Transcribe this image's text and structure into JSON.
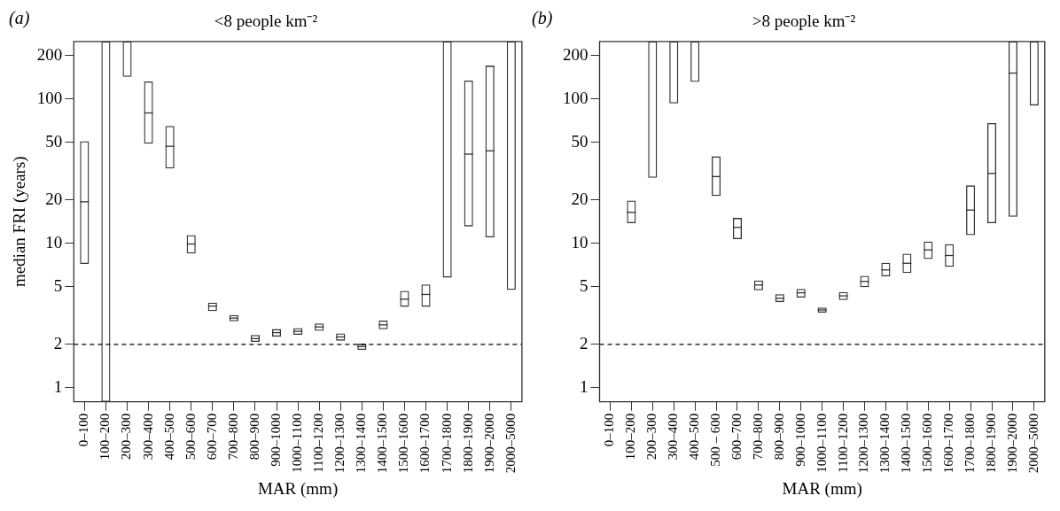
{
  "chart_data": [
    {
      "type": "box",
      "title": "<8 people km⁻²",
      "xlabel": "MAR (mm)",
      "ylabel": "median FRI (years)",
      "annotations": [
        "(a)"
      ],
      "categories": [
        "0–100",
        "100–200",
        "200–300",
        "300–400",
        "400–500",
        "500–600",
        "600–700",
        "700–800",
        "800–900",
        "900–1000",
        "1000–1100",
        "1100–1200",
        "1200–1300",
        "1300–1400",
        "1400–1500",
        "1500–1600",
        "1600–1700",
        "1700–1800",
        "1800–1900",
        "1900–2000",
        "2000–5000"
      ],
      "boxes": [
        {
          "low": 7.2,
          "q1": 7.2,
          "median": 19.4,
          "q3": 51,
          "high": 51
        },
        {
          "low": 0.8,
          "q1": 0.8,
          "median": null,
          "q3": 250,
          "high": 250
        },
        {
          "low": 142,
          "q1": 142,
          "median": null,
          "q3": 250,
          "high": 250
        },
        {
          "low": 49,
          "q1": 49,
          "median": 80,
          "q3": 132,
          "high": 132
        },
        {
          "low": 33,
          "q1": 33,
          "median": 47,
          "q3": 65,
          "high": 65
        },
        {
          "low": 8.5,
          "q1": 8.5,
          "median": 9.9,
          "q3": 11.4,
          "high": 11.4
        },
        {
          "low": 3.4,
          "q1": 3.4,
          "median": 3.68,
          "q3": 3.89,
          "high": 3.89
        },
        {
          "low": 2.89,
          "q1": 2.89,
          "median": 3.04,
          "q3": 3.19,
          "high": 3.19
        },
        {
          "low": 2.08,
          "q1": 2.08,
          "median": 2.19,
          "q3": 2.32,
          "high": 2.32
        },
        {
          "low": 2.26,
          "q1": 2.26,
          "median": 2.41,
          "q3": 2.55,
          "high": 2.55
        },
        {
          "low": 2.33,
          "q1": 2.33,
          "median": 2.46,
          "q3": 2.59,
          "high": 2.59
        },
        {
          "low": 2.48,
          "q1": 2.48,
          "median": 2.64,
          "q3": 2.79,
          "high": 2.79
        },
        {
          "low": 2.12,
          "q1": 2.12,
          "median": 2.25,
          "q3": 2.38,
          "high": 2.38
        },
        {
          "low": 1.83,
          "q1": 1.83,
          "median": 1.93,
          "q3": 2.02,
          "high": 2.02
        },
        {
          "low": 2.54,
          "q1": 2.54,
          "median": 2.73,
          "q3": 2.92,
          "high": 2.92
        },
        {
          "low": 3.64,
          "q1": 3.64,
          "median": 4.11,
          "q3": 4.69,
          "high": 4.69
        },
        {
          "low": 3.64,
          "q1": 3.64,
          "median": 4.43,
          "q3": 5.19,
          "high": 5.19
        },
        {
          "low": 5.8,
          "q1": 5.8,
          "median": null,
          "q3": 250,
          "high": 250
        },
        {
          "low": 13.1,
          "q1": 13.1,
          "median": 41.5,
          "q3": 134,
          "high": 134
        },
        {
          "low": 11,
          "q1": 11,
          "median": 43.7,
          "q3": 170,
          "high": 170
        },
        {
          "low": 4.77,
          "q1": 4.77,
          "median": null,
          "q3": 250,
          "high": 250
        }
      ],
      "log": true,
      "ylim": [
        0.8,
        250
      ],
      "yticks": [
        1,
        2,
        5,
        10,
        20,
        50,
        100,
        200
      ],
      "grid": false,
      "legend": false,
      "ref_lines": [
        {
          "axis": "y",
          "value": 2,
          "label": null,
          "color": "#000000",
          "line_style": "dashed"
        }
      ]
    },
    {
      "type": "box",
      "title": ">8 people km⁻²",
      "xlabel": "MAR (mm)",
      "annotations": [
        "(b)"
      ],
      "categories": [
        "0–100",
        "100–200",
        "200–300",
        "300–400",
        "400–500",
        "500 – 600",
        "600–700",
        "700–800",
        "800–900",
        "900–1000",
        "1000–1100",
        "1100–1200",
        "1200–1300",
        "1300–1400",
        "1400–1500",
        "1500–1600",
        "1600–1700",
        "1700–1800",
        "1800–1900",
        "1900–2000",
        "2000–5000"
      ],
      "boxes": [
        null,
        {
          "low": 13.8,
          "q1": 13.8,
          "median": 16.4,
          "q3": 19.8,
          "high": 19.8
        },
        {
          "low": 28.4,
          "q1": 28.4,
          "median": null,
          "q3": 250,
          "high": 250
        },
        {
          "low": 93,
          "q1": 93,
          "median": null,
          "q3": 250,
          "high": 250
        },
        {
          "low": 131,
          "q1": 131,
          "median": null,
          "q3": 250,
          "high": 250
        },
        {
          "low": 21.3,
          "q1": 21.3,
          "median": 29,
          "q3": 40,
          "high": 40
        },
        {
          "low": 10.7,
          "q1": 10.7,
          "median": 12.9,
          "q3": 15,
          "high": 15
        },
        {
          "low": 4.73,
          "q1": 4.73,
          "median": 5.15,
          "q3": 5.54,
          "high": 5.54
        },
        {
          "low": 3.92,
          "q1": 3.92,
          "median": 4.17,
          "q3": 4.45,
          "high": 4.45
        },
        {
          "low": 4.21,
          "q1": 4.21,
          "median": 4.55,
          "q3": 4.84,
          "high": 4.84
        },
        {
          "low": 3.31,
          "q1": 3.31,
          "median": 3.46,
          "q3": 3.6,
          "high": 3.6
        },
        {
          "low": 4.05,
          "q1": 4.05,
          "median": 4.33,
          "q3": 4.61,
          "high": 4.61
        },
        {
          "low": 4.98,
          "q1": 4.98,
          "median": 5.45,
          "q3": 5.96,
          "high": 5.96
        },
        {
          "low": 5.92,
          "q1": 5.92,
          "median": 6.55,
          "q3": 7.33,
          "high": 7.33
        },
        {
          "low": 6.23,
          "q1": 6.23,
          "median": 7.28,
          "q3": 8.47,
          "high": 8.47
        },
        {
          "low": 7.79,
          "q1": 7.79,
          "median": 9.01,
          "q3": 10.3,
          "high": 10.3
        },
        {
          "low": 6.89,
          "q1": 6.89,
          "median": 8.24,
          "q3": 9.86,
          "high": 9.86
        },
        {
          "low": 11.4,
          "q1": 11.4,
          "median": 17,
          "q3": 25.2,
          "high": 25.2
        },
        {
          "low": 13.8,
          "q1": 13.8,
          "median": 30.5,
          "q3": 68,
          "high": 68
        },
        {
          "low": 15.3,
          "q1": 15.3,
          "median": 151,
          "q3": 250,
          "high": 250
        },
        {
          "low": 90,
          "q1": 90,
          "median": null,
          "q3": 250,
          "high": 250
        }
      ],
      "log": true,
      "ylim": [
        0.8,
        250
      ],
      "yticks": [
        1,
        2,
        5,
        10,
        20,
        50,
        100,
        200
      ],
      "grid": false,
      "legend": false,
      "ref_lines": [
        {
          "axis": "y",
          "value": 2,
          "label": null,
          "color": "#000000",
          "line_style": "dashed"
        }
      ]
    }
  ]
}
